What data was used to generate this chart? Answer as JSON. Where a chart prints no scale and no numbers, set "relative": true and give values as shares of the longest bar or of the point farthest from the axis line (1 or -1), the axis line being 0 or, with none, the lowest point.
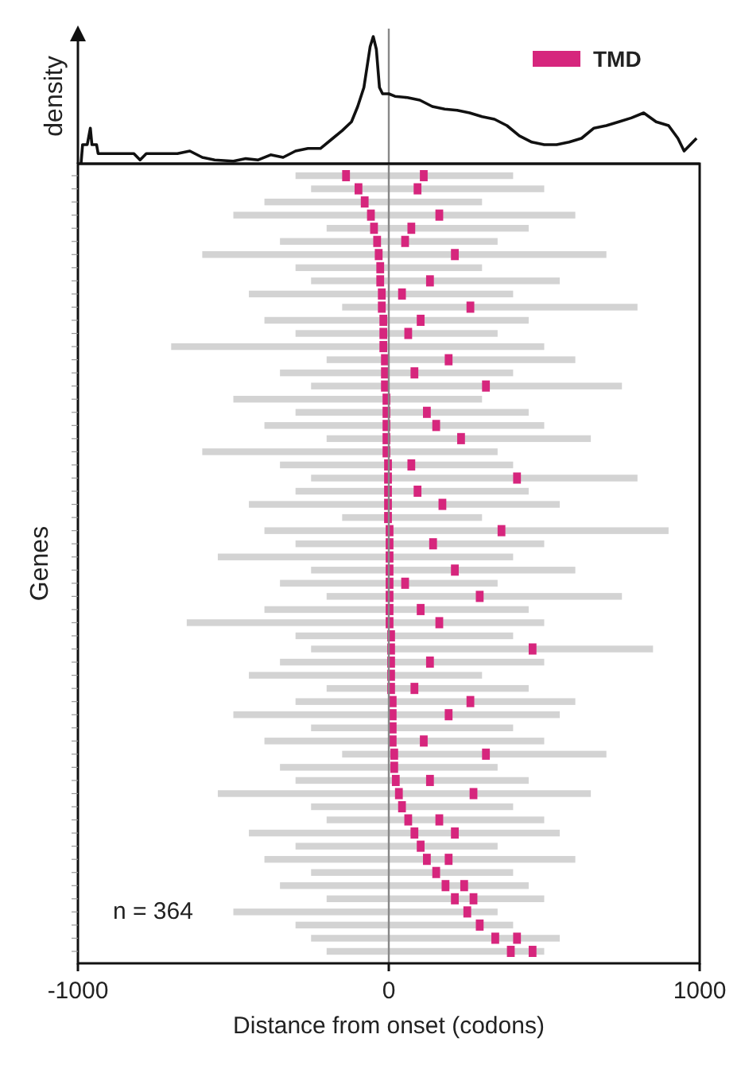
{
  "chart_data": [
    {
      "type": "line",
      "relative": true,
      "ylabel": "density",
      "xlim": [
        -1000,
        1000
      ],
      "line_style": "solid",
      "marker": "none",
      "ref_lines": [
        {
          "axis": "x",
          "value": 0,
          "color": "#888888"
        }
      ],
      "series": [
        {
          "color": "#111111",
          "x": [
            -990,
            -985,
            -970,
            -960,
            -955,
            -940,
            -935,
            -900,
            -880,
            -860,
            -820,
            -800,
            -780,
            -700,
            -680,
            -640,
            -600,
            -560,
            -500,
            -460,
            -420,
            -380,
            -340,
            -300,
            -260,
            -220,
            -180,
            -150,
            -120,
            -100,
            -80,
            -60,
            -50,
            -40,
            -30,
            -20,
            0,
            20,
            60,
            100,
            140,
            180,
            220,
            260,
            300,
            340,
            380,
            420,
            460,
            500,
            540,
            580,
            620,
            660,
            700,
            740,
            780,
            820,
            860,
            900,
            930,
            950,
            970,
            990
          ],
          "values": [
            0,
            0.15,
            0.15,
            0.28,
            0.15,
            0.15,
            0.08,
            0.08,
            0.08,
            0.08,
            0.08,
            0.03,
            0.08,
            0.08,
            0.08,
            0.1,
            0.05,
            0.03,
            0.02,
            0.04,
            0.03,
            0.07,
            0.05,
            0.1,
            0.12,
            0.12,
            0.2,
            0.26,
            0.33,
            0.45,
            0.6,
            0.92,
            1,
            0.9,
            0.6,
            0.55,
            0.55,
            0.53,
            0.52,
            0.5,
            0.45,
            0.43,
            0.42,
            0.4,
            0.37,
            0.35,
            0.3,
            0.22,
            0.17,
            0.15,
            0.15,
            0.17,
            0.2,
            0.28,
            0.3,
            0.33,
            0.36,
            0.4,
            0.33,
            0.3,
            0.2,
            0.1,
            0.15,
            0.2
          ]
        }
      ]
    },
    {
      "type": "bar",
      "orientation": "horizontal",
      "xlabel": "Distance from onset (codons)",
      "ylabel": "Genes",
      "xlim": [
        -1000,
        1000
      ],
      "xticks": [
        -1000,
        0,
        1000
      ],
      "legend": "top right",
      "annotations": [
        "n = 364"
      ],
      "ref_lines": [
        {
          "axis": "x",
          "value": 0,
          "color": "#888888"
        }
      ],
      "categories": [
        null,
        null,
        null,
        null,
        null,
        null,
        null,
        null,
        null,
        null,
        null,
        null,
        null,
        null,
        null,
        null,
        null,
        null,
        null,
        null,
        null,
        null,
        null,
        null,
        null,
        null,
        null,
        null,
        null,
        null,
        null,
        null,
        null,
        null,
        null,
        null,
        null,
        null,
        null,
        null,
        null,
        null,
        null,
        null,
        null,
        null,
        null,
        null,
        null,
        null,
        null,
        null,
        null,
        null,
        null,
        null,
        null,
        null,
        null,
        null
      ],
      "series": [
        {
          "color": "#d3d3d3",
          "base": [
            -300,
            -250,
            -400,
            -500,
            -200,
            -350,
            -600,
            -300,
            -250,
            -450,
            -150,
            -400,
            -300,
            -700,
            -200,
            -350,
            -250,
            -500,
            -300,
            -400,
            -200,
            -600,
            -350,
            -250,
            -300,
            -450,
            -150,
            -400,
            -300,
            -550,
            -250,
            -350,
            -200,
            -400,
            -650,
            -300,
            -250,
            -350,
            -450,
            -200,
            -300,
            -500,
            -250,
            -400,
            -150,
            -350,
            -300,
            -550,
            -250,
            -200,
            -450,
            -300,
            -400,
            -250,
            -350,
            -200,
            -500,
            -300,
            -250,
            -200
          ],
          "values": [
            700,
            750,
            700,
            1100,
            650,
            700,
            1300,
            600,
            800,
            850,
            950,
            850,
            650,
            1200,
            800,
            750,
            1000,
            800,
            750,
            900,
            850,
            950,
            750,
            1050,
            750,
            1000,
            450,
            1300,
            800,
            950,
            850,
            700,
            950,
            850,
            1150,
            700,
            1100,
            850,
            750,
            650,
            900,
            1050,
            650,
            900,
            850,
            700,
            750,
            1200,
            650,
            700,
            1000,
            650,
            1000,
            650,
            800,
            700,
            850,
            700,
            800,
            700
          ]
        },
        {
          "name": "TMD",
          "color": "#d6267d",
          "base": [
            -150,
            -110,
            -90,
            -70,
            -60,
            -50,
            -45,
            -40,
            -40,
            -35,
            -35,
            -30,
            -30,
            -30,
            -25,
            -25,
            -25,
            -20,
            -20,
            -20,
            -20,
            -20,
            -15,
            -15,
            -15,
            -15,
            -15,
            -10,
            -10,
            -10,
            -10,
            -10,
            -10,
            -10,
            -10,
            -5,
            -5,
            -5,
            -5,
            -5,
            0,
            0,
            0,
            0,
            5,
            5,
            10,
            20,
            30,
            50,
            70,
            90,
            110,
            140,
            170,
            200,
            240,
            280,
            330,
            380
          ],
          "values": [
            25,
            25,
            25,
            25,
            25,
            25,
            25,
            25,
            25,
            25,
            25,
            25,
            25,
            25,
            25,
            25,
            25,
            25,
            25,
            25,
            25,
            25,
            25,
            25,
            25,
            25,
            25,
            25,
            25,
            25,
            25,
            25,
            25,
            25,
            25,
            25,
            25,
            25,
            25,
            25,
            25,
            25,
            25,
            25,
            25,
            25,
            25,
            25,
            25,
            25,
            25,
            25,
            25,
            25,
            25,
            25,
            25,
            25,
            25,
            25
          ]
        },
        {
          "color": "#d6267d",
          "base": [
            100,
            80,
            null,
            150,
            60,
            40,
            200,
            null,
            120,
            30,
            250,
            90,
            50,
            null,
            180,
            70,
            300,
            null,
            110,
            140,
            220,
            null,
            60,
            400,
            80,
            160,
            null,
            350,
            130,
            null,
            200,
            40,
            280,
            90,
            150,
            null,
            450,
            120,
            null,
            70,
            250,
            180,
            null,
            100,
            300,
            null,
            120,
            260,
            null,
            150,
            200,
            null,
            180,
            null,
            230,
            260,
            null,
            null,
            400,
            450
          ],
          "values": [
            25,
            25,
            null,
            25,
            25,
            25,
            25,
            null,
            25,
            25,
            25,
            25,
            25,
            null,
            25,
            25,
            25,
            null,
            25,
            25,
            25,
            null,
            25,
            25,
            25,
            25,
            null,
            25,
            25,
            null,
            25,
            25,
            25,
            25,
            25,
            null,
            25,
            25,
            null,
            25,
            25,
            25,
            null,
            25,
            25,
            null,
            25,
            25,
            null,
            25,
            25,
            null,
            25,
            null,
            25,
            25,
            null,
            null,
            25,
            25
          ]
        }
      ]
    }
  ]
}
